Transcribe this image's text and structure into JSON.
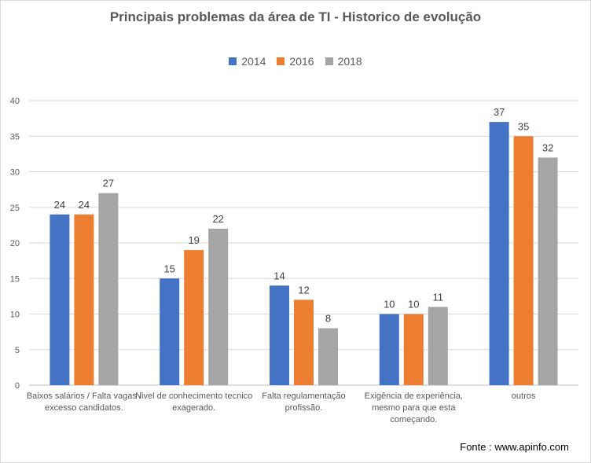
{
  "chart_data": {
    "type": "bar",
    "title": "Principais problemas da área de TI - Historico de evolução",
    "categories": [
      "Baixos salários / Falta vagas / excesso candidatos.",
      "Nivel de conhecimento tecnico exagerado.",
      "Falta regulamentação profissão.",
      "Exigência de experiência, mesmo para que esta começando.",
      "outros"
    ],
    "series": [
      {
        "name": "2014",
        "color": "#4472c4",
        "values": [
          24,
          15,
          14,
          10,
          37
        ]
      },
      {
        "name": "2016",
        "color": "#ed7d31",
        "values": [
          24,
          19,
          12,
          10,
          35
        ]
      },
      {
        "name": "2018",
        "color": "#a5a5a5",
        "values": [
          27,
          22,
          8,
          11,
          32
        ]
      }
    ],
    "ylim": [
      0,
      40
    ],
    "yticks": [
      0,
      5,
      10,
      15,
      20,
      25,
      30,
      35,
      40
    ],
    "grid": true,
    "legend_position": "top",
    "data_labels": true
  },
  "source": "Fonte : www.apinfo.com"
}
